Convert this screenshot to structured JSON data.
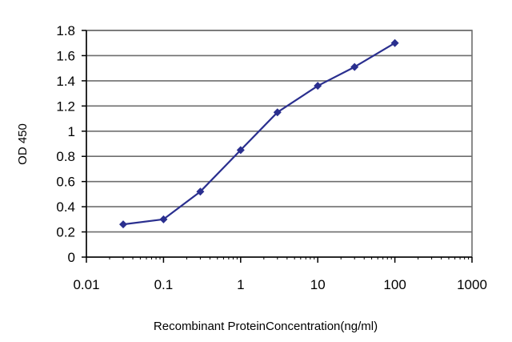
{
  "chart_data": {
    "type": "line",
    "title": "",
    "xlabel": "Recombinant ProteinConcentration(ng/ml)",
    "ylabel": "OD 450",
    "x_scale": "log",
    "xlim": [
      0.01,
      1000
    ],
    "ylim": [
      0,
      1.8
    ],
    "x_ticks": [
      0.01,
      0.1,
      1,
      10,
      100,
      1000
    ],
    "x_tick_labels": [
      "0.01",
      "0.1",
      "1",
      "10",
      "100",
      "1000"
    ],
    "y_ticks": [
      0,
      0.2,
      0.4,
      0.6,
      0.8,
      1,
      1.2,
      1.4,
      1.6,
      1.8
    ],
    "y_tick_labels": [
      "0",
      "0.2",
      "0.4",
      "0.6",
      "0.8",
      "1",
      "1.2",
      "1.4",
      "1.6",
      "1.8"
    ],
    "grid": "horizontal",
    "legend": "none",
    "series": [
      {
        "x": [
          0.03,
          0.1,
          0.3,
          1,
          3,
          10,
          30,
          100
        ],
        "y": [
          0.26,
          0.3,
          0.52,
          0.85,
          1.15,
          1.36,
          1.51,
          1.7
        ],
        "color": "#2a2f8f"
      }
    ]
  }
}
